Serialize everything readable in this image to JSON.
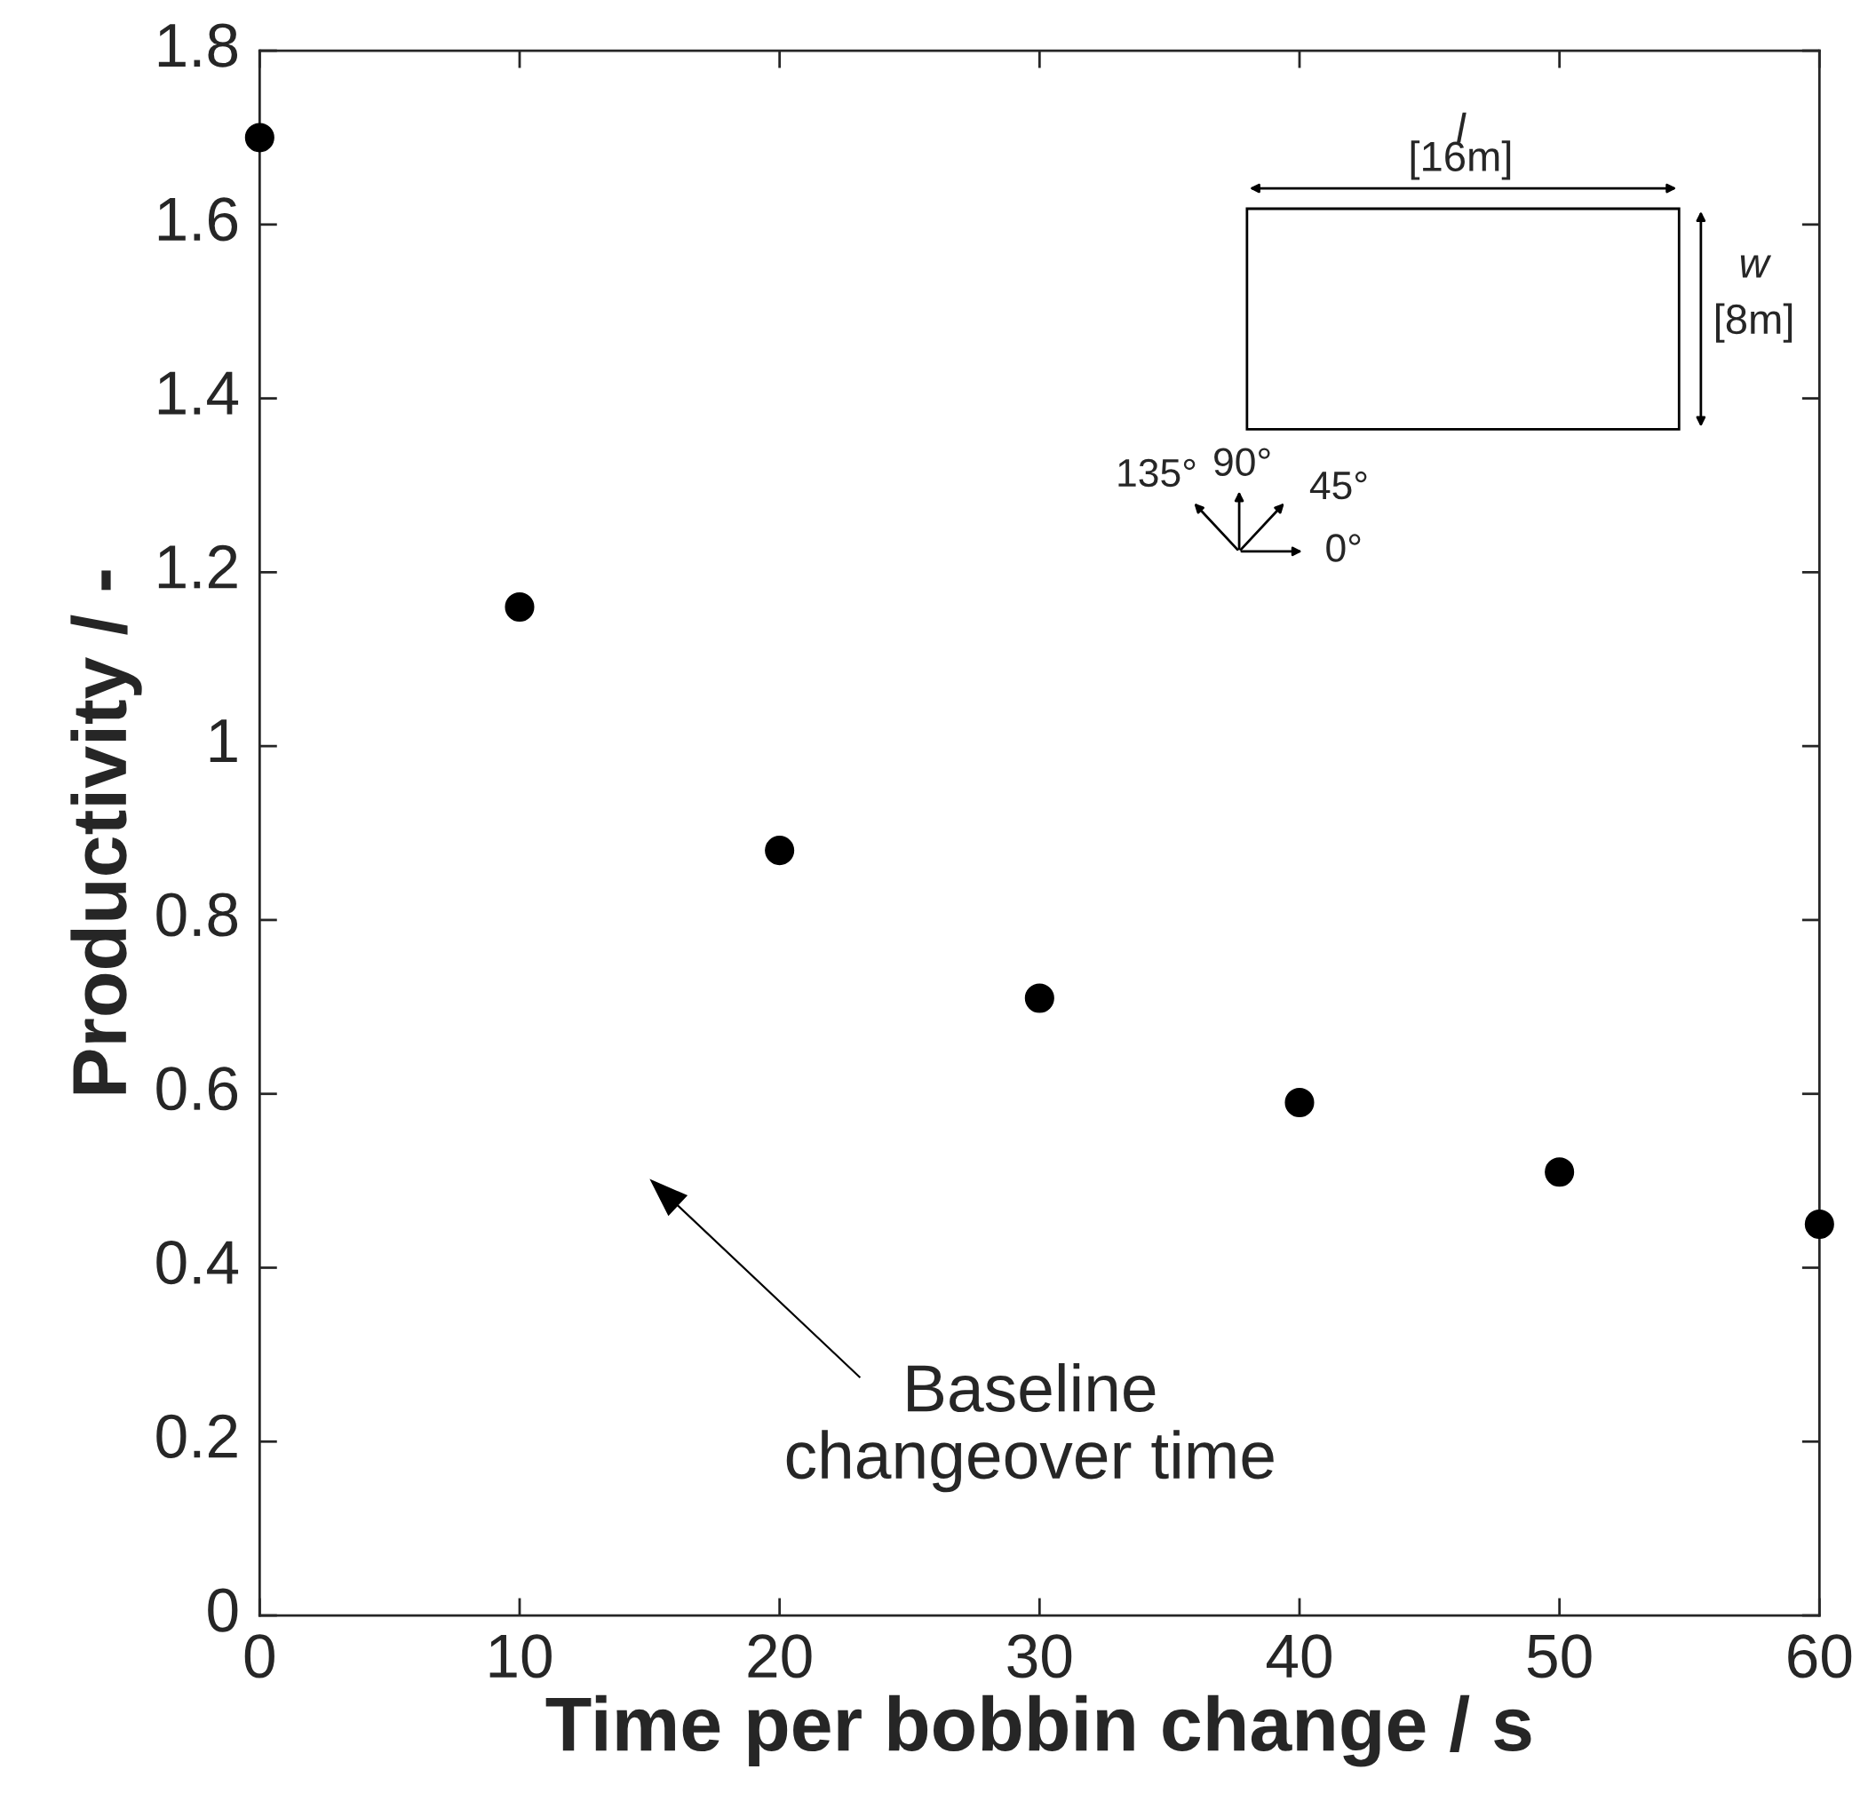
{
  "chart_data": {
    "type": "scatter",
    "xlabel": "Time per bobbin change / s",
    "ylabel": "Productivity / -",
    "x": [
      0,
      10,
      20,
      30,
      40,
      50,
      60
    ],
    "series": [
      {
        "color": "#000000",
        "values": [
          1.7,
          1.16,
          0.88,
          0.71,
          0.59,
          0.51,
          0.45
        ]
      }
    ],
    "marker": "circle",
    "grid": false,
    "xlim": [
      0,
      60
    ],
    "xticks": [
      0,
      10,
      20,
      30,
      40,
      50,
      60
    ],
    "ylim": [
      0,
      1.8
    ],
    "yticks": [
      0,
      0.2,
      0.4,
      0.6,
      0.8,
      1,
      1.2,
      1.4,
      1.6,
      1.8
    ],
    "annotations": [
      "Baseline\nchangeover time",
      "l",
      "[16m]",
      "w",
      "[8m]",
      "135°",
      "90°",
      "45°",
      "0°"
    ]
  }
}
